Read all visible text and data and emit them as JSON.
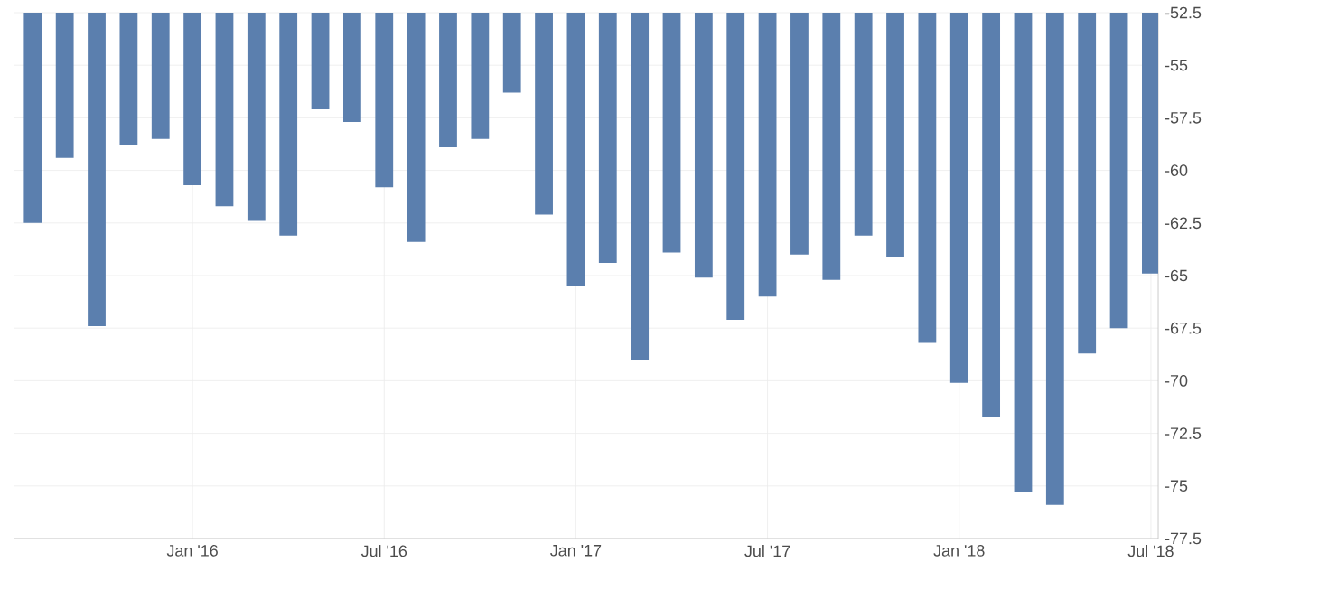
{
  "chart_data": {
    "type": "bar",
    "color": "#5b7fae",
    "x": [
      "2015-08",
      "2015-09",
      "2015-10",
      "2015-11",
      "2015-12",
      "2016-01",
      "2016-02",
      "2016-03",
      "2016-04",
      "2016-05",
      "2016-06",
      "2016-07",
      "2016-08",
      "2016-09",
      "2016-10",
      "2016-11",
      "2016-12",
      "2017-01",
      "2017-02",
      "2017-03",
      "2017-04",
      "2017-05",
      "2017-06",
      "2017-07",
      "2017-08",
      "2017-09",
      "2017-10",
      "2017-11",
      "2017-12",
      "2018-01",
      "2018-02",
      "2018-03",
      "2018-04",
      "2018-05",
      "2018-06",
      "2018-07"
    ],
    "values": [
      -62.5,
      -59.4,
      -67.4,
      -58.8,
      -58.5,
      -60.7,
      -61.7,
      -62.4,
      -63.1,
      -57.1,
      -57.7,
      -60.8,
      -63.4,
      -58.9,
      -58.5,
      -56.3,
      -62.1,
      -65.5,
      -64.4,
      -69.0,
      -63.9,
      -65.1,
      -67.1,
      -66.0,
      -64.0,
      -65.2,
      -63.1,
      -64.1,
      -68.2,
      -70.1,
      -71.7,
      -75.3,
      -75.9,
      -68.7,
      -67.5,
      -64.9
    ],
    "xlim": [
      "2015-07-14",
      "2018-07-08"
    ],
    "xticks": [
      {
        "value": "2016-01",
        "label": "Jan '16"
      },
      {
        "value": "2016-07",
        "label": "Jul '16"
      },
      {
        "value": "2017-01",
        "label": "Jan '17"
      },
      {
        "value": "2017-07",
        "label": "Jul '17"
      },
      {
        "value": "2018-01",
        "label": "Jan '18"
      },
      {
        "value": "2018-07",
        "label": "Jul '18"
      }
    ],
    "ylim": [
      -77.5,
      -52.5
    ],
    "yticks": [
      -52.5,
      -55,
      -57.5,
      -60,
      -62.5,
      -65,
      -67.5,
      -70,
      -72.5,
      -75,
      -77.5
    ],
    "grid": true
  }
}
